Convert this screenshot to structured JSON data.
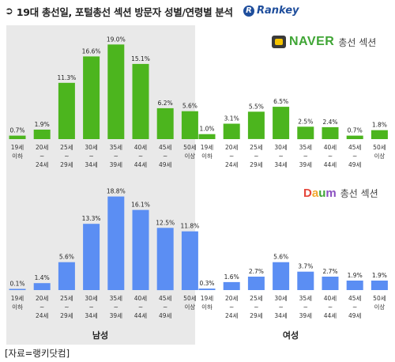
{
  "title": {
    "arrow": "➲",
    "text": "19대 총선일, 포털총선 섹션 방문자 성별/연령별 분석"
  },
  "brand": {
    "name": "Rankey",
    "mark": "R"
  },
  "source_note": "[자료=랭키닷컴]",
  "naver": {
    "logo": "NAVER",
    "subtitle": "총선 섹션",
    "bar_color": "#4cb51e"
  },
  "daum": {
    "logo_letters": [
      "D",
      "a",
      "u",
      "m"
    ],
    "subtitle": "총선 섹션",
    "bar_color": "#5b8ef3"
  },
  "male_panel_color": "#e9e9e9",
  "groups": {
    "male": "남성",
    "female": "여성"
  },
  "chart_data": [
    {
      "type": "bar",
      "name": "NAVER 총선 섹션",
      "categories": [
        [
          "19세",
          "이하"
        ],
        [
          "20세",
          "~",
          "24세"
        ],
        [
          "25세",
          "~",
          "29세"
        ],
        [
          "30세",
          "~",
          "34세"
        ],
        [
          "35세",
          "~",
          "39세"
        ],
        [
          "40세",
          "~",
          "44세"
        ],
        [
          "45세",
          "~",
          "49세"
        ],
        [
          "50세",
          "이상"
        ]
      ],
      "series": [
        {
          "name": "남성",
          "values": [
            0.7,
            1.9,
            11.3,
            16.6,
            19.0,
            15.1,
            6.2,
            5.6
          ],
          "labels": [
            "0.7%",
            "1.9%",
            "11.3%",
            "16.6%",
            "19.0%",
            "15.1%",
            "6.2%",
            "5.6%"
          ]
        },
        {
          "name": "여성",
          "values": [
            1.0,
            3.1,
            5.5,
            6.5,
            2.5,
            2.4,
            0.7,
            1.8
          ],
          "labels": [
            "1.0%",
            "3.1%",
            "5.5%",
            "6.5%",
            "2.5%",
            "2.4%",
            "0.7%",
            "1.8%"
          ]
        }
      ]
    },
    {
      "type": "bar",
      "name": "Daum 총선 섹션",
      "categories": [
        [
          "19세",
          "이하"
        ],
        [
          "20세",
          "~",
          "24세"
        ],
        [
          "25세",
          "~",
          "29세"
        ],
        [
          "30세",
          "~",
          "34세"
        ],
        [
          "35세",
          "~",
          "39세"
        ],
        [
          "40세",
          "~",
          "44세"
        ],
        [
          "45세",
          "~",
          "49세"
        ],
        [
          "50세",
          "이상"
        ]
      ],
      "series": [
        {
          "name": "남성",
          "values": [
            0.1,
            1.4,
            5.6,
            13.3,
            18.8,
            16.1,
            12.5,
            11.8
          ],
          "labels": [
            "0.1%",
            "1.4%",
            "5.6%",
            "13.3%",
            "18.8%",
            "16.1%",
            "12.5%",
            "11.8%"
          ]
        },
        {
          "name": "여성",
          "values": [
            0.3,
            1.6,
            2.7,
            5.6,
            3.7,
            2.7,
            1.9,
            1.9
          ],
          "labels": [
            "0.3%",
            "1.6%",
            "2.7%",
            "5.6%",
            "3.7%",
            "2.7%",
            "1.9%",
            "1.9%"
          ]
        }
      ]
    }
  ]
}
